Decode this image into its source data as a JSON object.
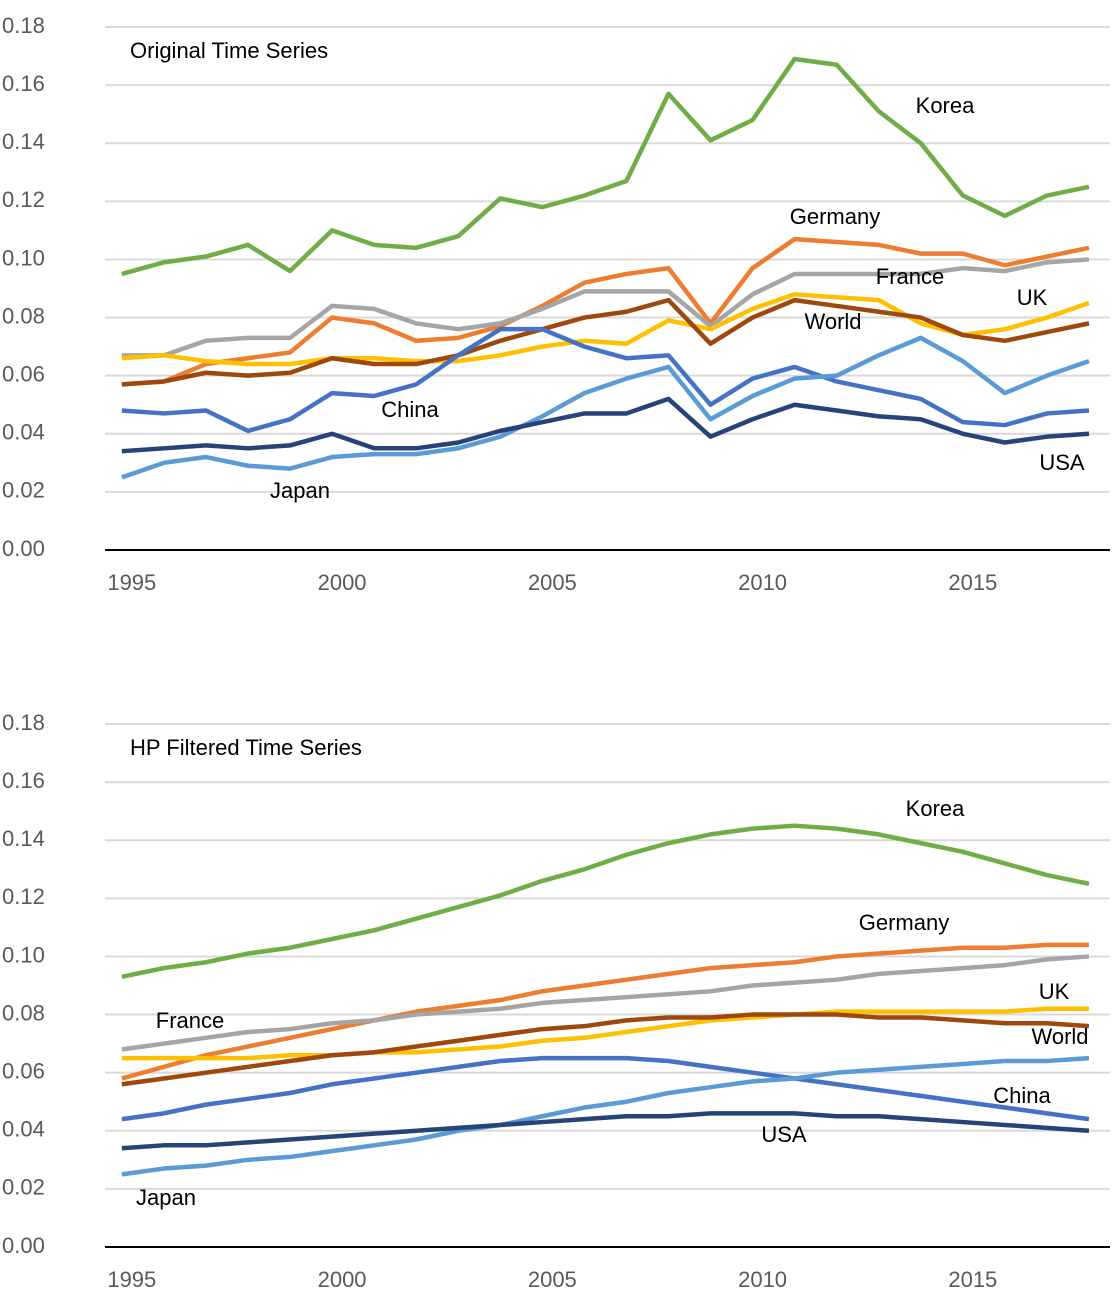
{
  "chart_data": [
    {
      "type": "line",
      "title": "Original Time Series",
      "x": [
        1995,
        1996,
        1997,
        1998,
        1999,
        2000,
        2001,
        2002,
        2003,
        2004,
        2005,
        2006,
        2007,
        2008,
        2009,
        2010,
        2011,
        2012,
        2013,
        2014,
        2015,
        2016,
        2017,
        2018
      ],
      "xlim": [
        1994.6,
        2018.5
      ],
      "xticks": [
        1995,
        2000,
        2005,
        2010,
        2015
      ],
      "ylim": [
        0,
        0.18
      ],
      "yticks": [
        {
          "value": 0,
          "label": "0.00"
        },
        {
          "value": 0.02,
          "label": "0.02"
        },
        {
          "value": 0.04,
          "label": "0.04"
        },
        {
          "value": 0.06,
          "label": "0.06"
        },
        {
          "value": 0.08,
          "label": "0.08"
        },
        {
          "value": 0.1,
          "label": "0.10"
        },
        {
          "value": 0.12,
          "label": "0.12"
        },
        {
          "value": 0.14,
          "label": "0.14"
        },
        {
          "value": 0.16,
          "label": "0.16"
        },
        {
          "value": 0.18,
          "label": "0.18"
        }
      ],
      "grid": true,
      "series": [
        {
          "name": "Korea",
          "color": "#70ad47",
          "values": [
            0.095,
            0.099,
            0.101,
            0.105,
            0.096,
            0.11,
            0.105,
            0.104,
            0.108,
            0.121,
            0.118,
            0.122,
            0.127,
            0.157,
            0.141,
            0.148,
            0.169,
            0.167,
            0.151,
            0.14,
            0.122,
            0.115,
            0.122,
            0.125
          ]
        },
        {
          "name": "Germany",
          "color": "#ed7d31",
          "values": [
            0.057,
            0.058,
            0.064,
            0.066,
            0.068,
            0.08,
            0.078,
            0.072,
            0.073,
            0.077,
            0.084,
            0.092,
            0.095,
            0.097,
            0.078,
            0.097,
            0.107,
            0.106,
            0.105,
            0.102,
            0.102,
            0.098,
            0.101,
            0.104
          ]
        },
        {
          "name": "France",
          "color": "#a5a5a5",
          "values": [
            0.067,
            0.067,
            0.072,
            0.073,
            0.073,
            0.084,
            0.083,
            0.078,
            0.076,
            0.078,
            0.083,
            0.089,
            0.089,
            0.089,
            0.077,
            0.088,
            0.095,
            0.095,
            0.095,
            0.095,
            0.097,
            0.096,
            0.099,
            0.1
          ]
        },
        {
          "name": "UK",
          "color": "#ffc000",
          "values": [
            0.066,
            0.067,
            0.065,
            0.064,
            0.064,
            0.066,
            0.066,
            0.065,
            0.065,
            0.067,
            0.07,
            0.072,
            0.071,
            0.079,
            0.076,
            0.083,
            0.088,
            0.087,
            0.086,
            0.078,
            0.074,
            0.076,
            0.08,
            0.085
          ]
        },
        {
          "name": "World",
          "color": "#9e480e",
          "values": [
            0.057,
            0.058,
            0.061,
            0.06,
            0.061,
            0.066,
            0.064,
            0.064,
            0.067,
            0.072,
            0.076,
            0.08,
            0.082,
            0.086,
            0.071,
            0.08,
            0.086,
            0.084,
            0.082,
            0.08,
            0.074,
            0.072,
            0.075,
            0.078
          ]
        },
        {
          "name": "China",
          "color": "#4472c4",
          "values": [
            0.048,
            0.047,
            0.048,
            0.041,
            0.045,
            0.054,
            0.053,
            0.057,
            0.067,
            0.076,
            0.076,
            0.07,
            0.066,
            0.067,
            0.05,
            0.059,
            0.063,
            0.058,
            0.055,
            0.052,
            0.044,
            0.043,
            0.047,
            0.048
          ]
        },
        {
          "name": "Japan",
          "color": "#5b9bd5",
          "values": [
            0.025,
            0.03,
            0.032,
            0.029,
            0.028,
            0.032,
            0.033,
            0.033,
            0.035,
            0.039,
            0.046,
            0.054,
            0.059,
            0.063,
            0.045,
            0.053,
            0.059,
            0.06,
            0.067,
            0.073,
            0.065,
            0.054,
            0.06,
            0.065
          ]
        },
        {
          "name": "USA",
          "color": "#264478",
          "values": [
            0.034,
            0.035,
            0.036,
            0.035,
            0.036,
            0.04,
            0.035,
            0.035,
            0.037,
            0.041,
            0.044,
            0.047,
            0.047,
            0.052,
            0.039,
            0.045,
            0.05,
            0.048,
            0.046,
            0.045,
            0.04,
            0.037,
            0.039,
            0.04
          ]
        }
      ]
    },
    {
      "type": "line",
      "title": "HP Filtered Time Series",
      "x": [
        1995,
        1996,
        1997,
        1998,
        1999,
        2000,
        2001,
        2002,
        2003,
        2004,
        2005,
        2006,
        2007,
        2008,
        2009,
        2010,
        2011,
        2012,
        2013,
        2014,
        2015,
        2016,
        2017,
        2018
      ],
      "xlim": [
        1994.6,
        2018.5
      ],
      "xticks": [
        1995,
        2000,
        2005,
        2010,
        2015
      ],
      "ylim": [
        0,
        0.18
      ],
      "yticks": [
        {
          "value": 0,
          "label": "0.00"
        },
        {
          "value": 0.02,
          "label": "0.02"
        },
        {
          "value": 0.04,
          "label": "0.04"
        },
        {
          "value": 0.06,
          "label": "0.06"
        },
        {
          "value": 0.08,
          "label": "0.08"
        },
        {
          "value": 0.1,
          "label": "0.10"
        },
        {
          "value": 0.12,
          "label": "0.12"
        },
        {
          "value": 0.14,
          "label": "0.14"
        },
        {
          "value": 0.16,
          "label": "0.16"
        },
        {
          "value": 0.18,
          "label": "0.18"
        }
      ],
      "grid": true,
      "series": [
        {
          "name": "Korea",
          "color": "#70ad47",
          "values": [
            0.093,
            0.096,
            0.098,
            0.101,
            0.103,
            0.106,
            0.109,
            0.113,
            0.117,
            0.121,
            0.126,
            0.13,
            0.135,
            0.139,
            0.142,
            0.144,
            0.145,
            0.144,
            0.142,
            0.139,
            0.136,
            0.132,
            0.128,
            0.125
          ]
        },
        {
          "name": "Germany",
          "color": "#ed7d31",
          "values": [
            0.058,
            0.062,
            0.066,
            0.069,
            0.072,
            0.075,
            0.078,
            0.081,
            0.083,
            0.085,
            0.088,
            0.09,
            0.092,
            0.094,
            0.096,
            0.097,
            0.098,
            0.1,
            0.101,
            0.102,
            0.103,
            0.103,
            0.104,
            0.104
          ]
        },
        {
          "name": "France",
          "color": "#a5a5a5",
          "values": [
            0.068,
            0.07,
            0.072,
            0.074,
            0.075,
            0.077,
            0.078,
            0.08,
            0.081,
            0.082,
            0.084,
            0.085,
            0.086,
            0.087,
            0.088,
            0.09,
            0.091,
            0.092,
            0.094,
            0.095,
            0.096,
            0.097,
            0.099,
            0.1
          ]
        },
        {
          "name": "UK",
          "color": "#ffc000",
          "values": [
            0.065,
            0.065,
            0.065,
            0.065,
            0.066,
            0.066,
            0.067,
            0.067,
            0.068,
            0.069,
            0.071,
            0.072,
            0.074,
            0.076,
            0.078,
            0.079,
            0.08,
            0.081,
            0.081,
            0.081,
            0.081,
            0.081,
            0.082,
            0.082
          ]
        },
        {
          "name": "World",
          "color": "#9e480e",
          "values": [
            0.056,
            0.058,
            0.06,
            0.062,
            0.064,
            0.066,
            0.067,
            0.069,
            0.071,
            0.073,
            0.075,
            0.076,
            0.078,
            0.079,
            0.079,
            0.08,
            0.08,
            0.08,
            0.079,
            0.079,
            0.078,
            0.077,
            0.077,
            0.076
          ]
        },
        {
          "name": "China",
          "color": "#4472c4",
          "values": [
            0.044,
            0.046,
            0.049,
            0.051,
            0.053,
            0.056,
            0.058,
            0.06,
            0.062,
            0.064,
            0.065,
            0.065,
            0.065,
            0.064,
            0.062,
            0.06,
            0.058,
            0.056,
            0.054,
            0.052,
            0.05,
            0.048,
            0.046,
            0.044
          ]
        },
        {
          "name": "Japan",
          "color": "#5b9bd5",
          "values": [
            0.025,
            0.027,
            0.028,
            0.03,
            0.031,
            0.033,
            0.035,
            0.037,
            0.04,
            0.042,
            0.045,
            0.048,
            0.05,
            0.053,
            0.055,
            0.057,
            0.058,
            0.06,
            0.061,
            0.062,
            0.063,
            0.064,
            0.064,
            0.065
          ]
        },
        {
          "name": "USA",
          "color": "#264478",
          "values": [
            0.034,
            0.035,
            0.035,
            0.036,
            0.037,
            0.038,
            0.039,
            0.04,
            0.041,
            0.042,
            0.043,
            0.044,
            0.045,
            0.045,
            0.046,
            0.046,
            0.046,
            0.045,
            0.045,
            0.044,
            0.043,
            0.042,
            0.041,
            0.04
          ]
        }
      ]
    }
  ]
}
